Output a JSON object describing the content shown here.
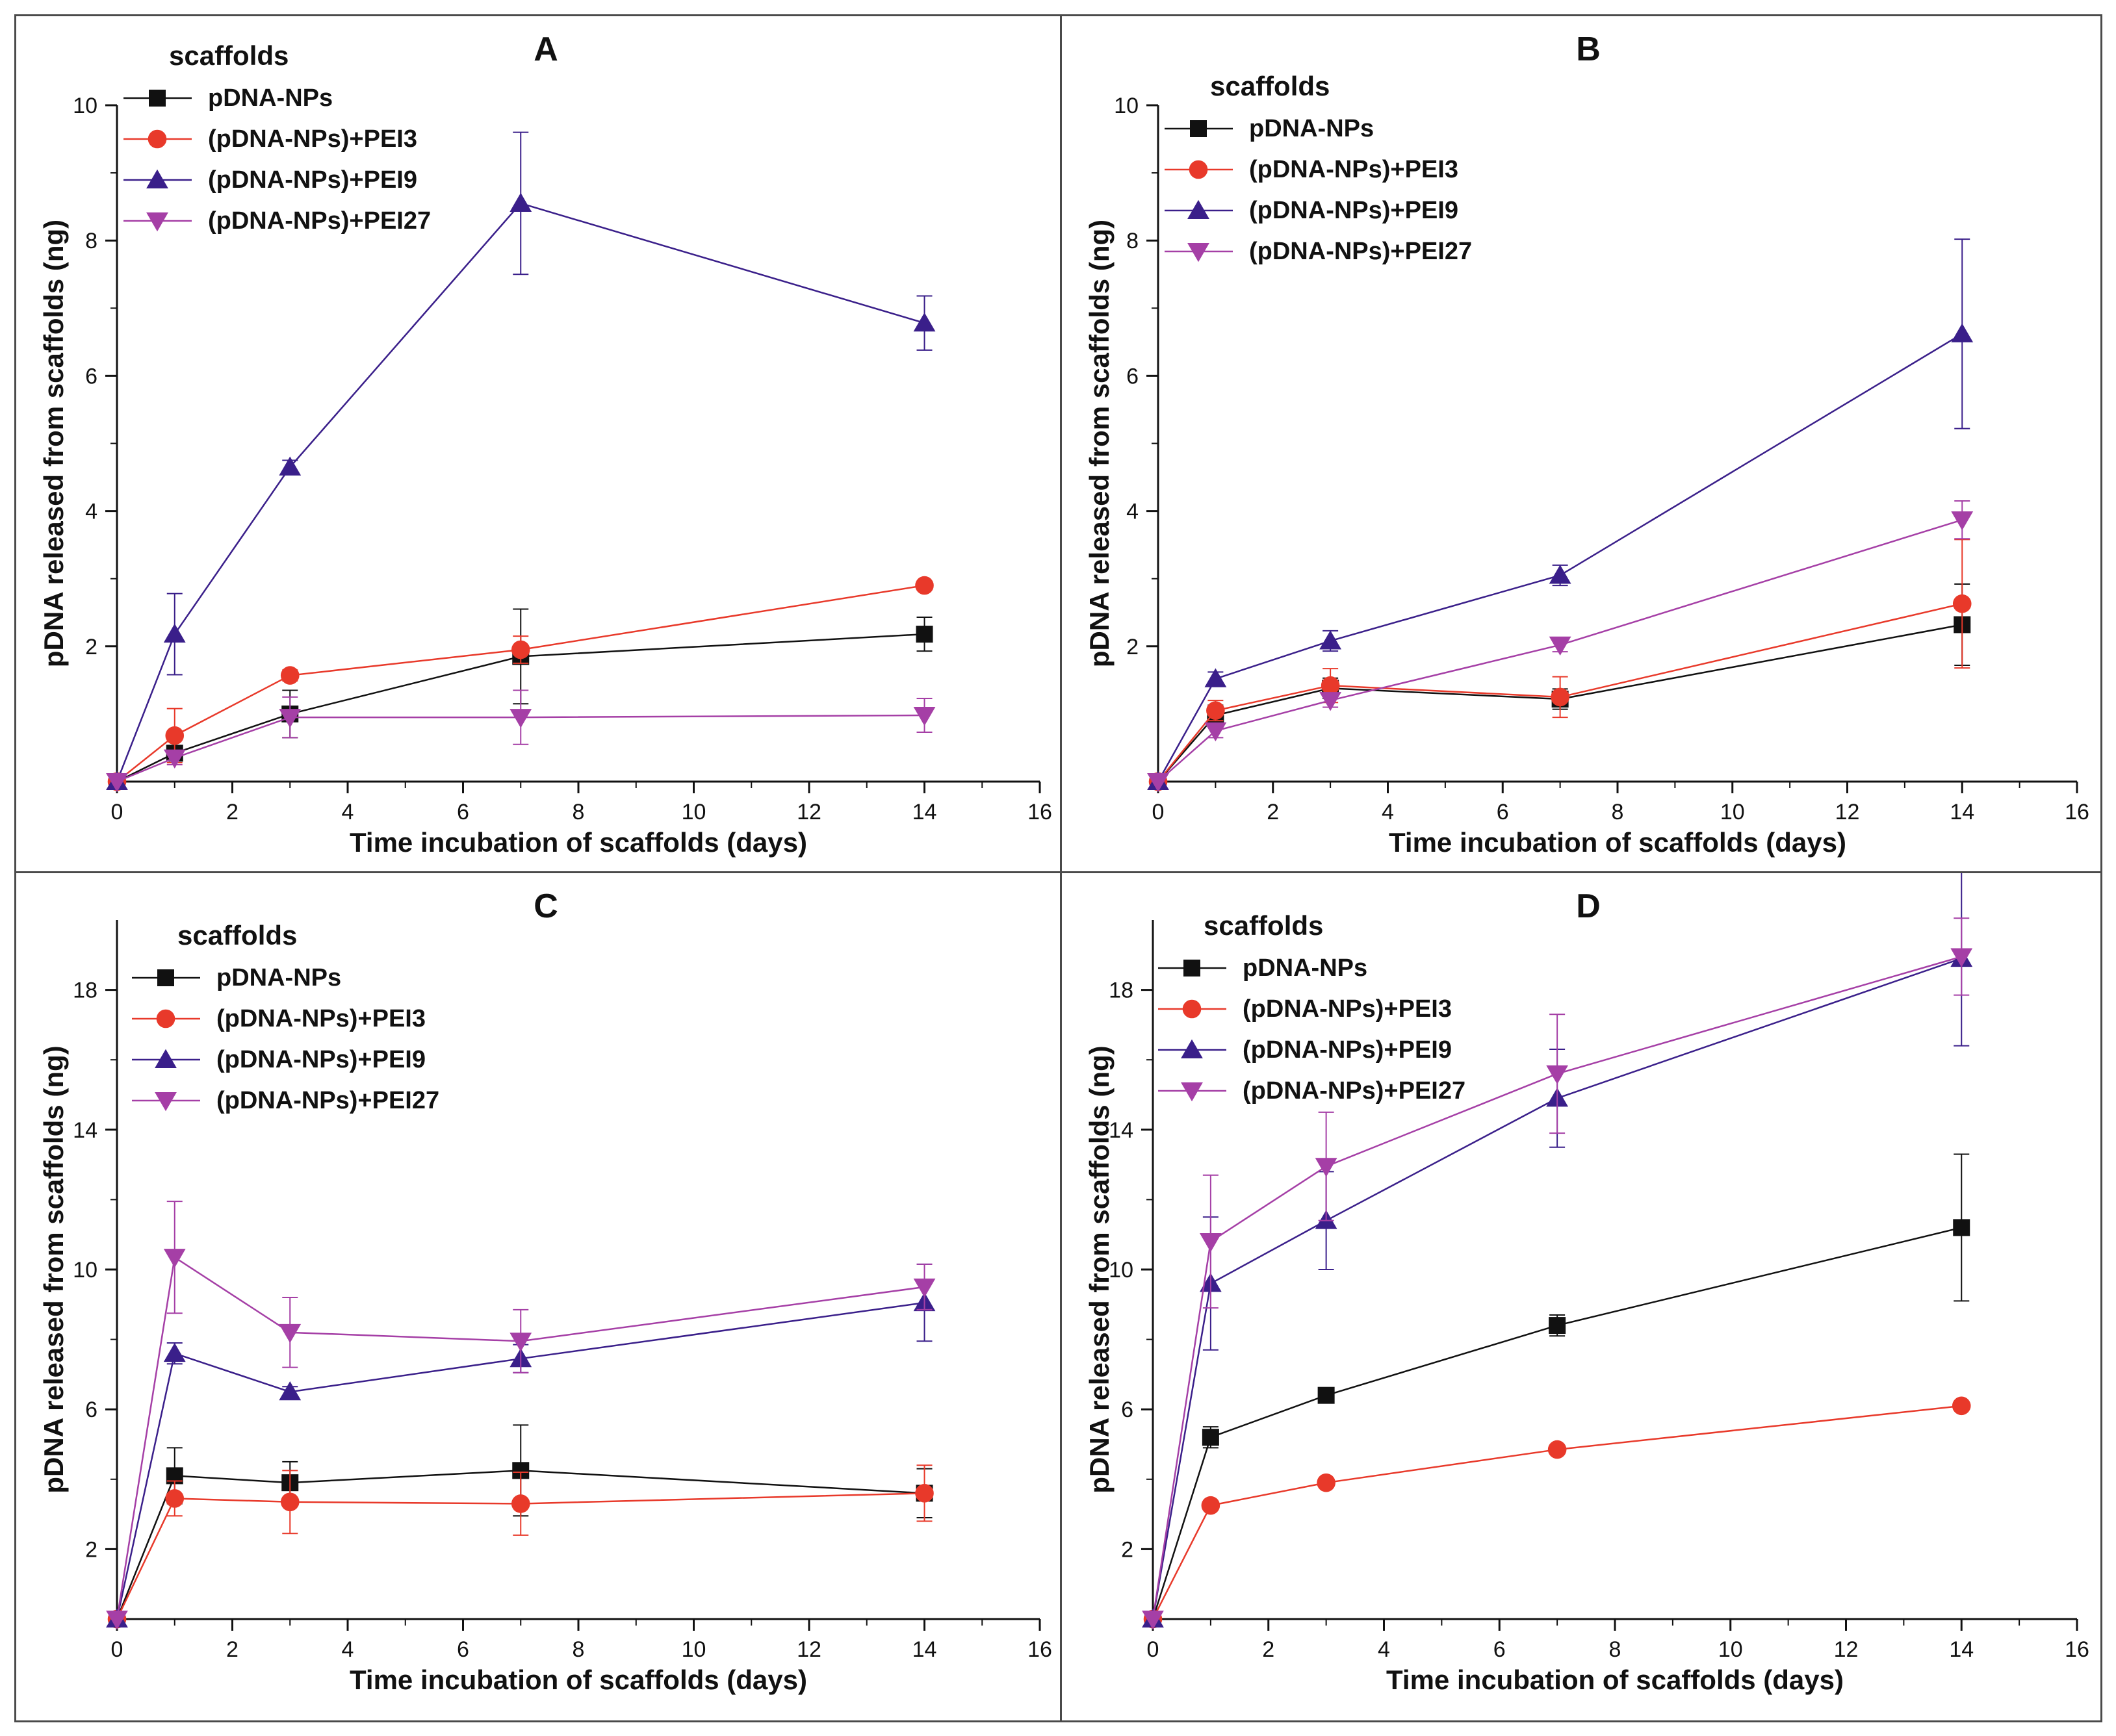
{
  "chart_data": [
    {
      "type": "line",
      "panel_label": "A",
      "xlabel": "Time incubation of scaffolds (days)",
      "ylabel": "pDNA released from scaffolds (ng)",
      "xlim": [
        0,
        16
      ],
      "ylim": [
        0,
        10
      ],
      "xticks": [
        0,
        2,
        4,
        6,
        8,
        10,
        12,
        14,
        16
      ],
      "yticks": [
        2,
        4,
        6,
        8,
        10
      ],
      "legend_title": "scaffolds",
      "legend_position": "top-left",
      "x": [
        0,
        1,
        3,
        7,
        14
      ],
      "series": [
        {
          "name": "pDNA-NPs",
          "color": "#111111",
          "marker": "square",
          "values": [
            0,
            0.42,
            1.0,
            1.85,
            2.18
          ],
          "errors": [
            0,
            0.1,
            0.35,
            0.7,
            0.25
          ]
        },
        {
          "name": "(pDNA-NPs)+PEI3",
          "color": "#e8392a",
          "marker": "circle",
          "values": [
            0,
            0.68,
            1.57,
            1.95,
            2.9
          ],
          "errors": [
            0,
            0.4,
            0.08,
            0.2,
            0.06
          ]
        },
        {
          "name": "(pDNA-NPs)+PEI9",
          "color": "#3a1f8a",
          "marker": "triangle-up",
          "values": [
            0,
            2.18,
            4.65,
            8.55,
            6.78
          ],
          "errors": [
            0,
            0.6,
            0.1,
            1.05,
            0.4
          ]
        },
        {
          "name": "(pDNA-NPs)+PEI27",
          "color": "#a53fa6",
          "marker": "triangle-down",
          "values": [
            0,
            0.35,
            0.95,
            0.95,
            0.98
          ],
          "errors": [
            0,
            0.1,
            0.3,
            0.4,
            0.25
          ]
        }
      ]
    },
    {
      "type": "line",
      "panel_label": "B",
      "xlabel": "Time incubation of scaffolds (days)",
      "ylabel": "pDNA released from scaffolds (ng)",
      "xlim": [
        0,
        16
      ],
      "ylim": [
        0,
        10
      ],
      "xticks": [
        0,
        2,
        4,
        6,
        8,
        10,
        12,
        14,
        16
      ],
      "yticks": [
        2,
        4,
        6,
        8,
        10
      ],
      "legend_title": "scaffolds",
      "legend_position": "top-left",
      "x": [
        0,
        1,
        3,
        7,
        14
      ],
      "series": [
        {
          "name": "pDNA-NPs",
          "color": "#111111",
          "marker": "square",
          "values": [
            0,
            0.98,
            1.38,
            1.22,
            2.32
          ],
          "errors": [
            0,
            0.15,
            0.15,
            0.15,
            0.6
          ]
        },
        {
          "name": "(pDNA-NPs)+PEI3",
          "color": "#e8392a",
          "marker": "circle",
          "values": [
            0,
            1.05,
            1.42,
            1.25,
            2.63
          ],
          "errors": [
            0,
            0.15,
            0.25,
            0.3,
            0.95
          ]
        },
        {
          "name": "(pDNA-NPs)+PEI9",
          "color": "#3a1f8a",
          "marker": "triangle-up",
          "values": [
            0,
            1.52,
            2.08,
            3.05,
            6.62
          ],
          "errors": [
            0,
            0.1,
            0.15,
            0.15,
            1.4
          ]
        },
        {
          "name": "(pDNA-NPs)+PEI27",
          "color": "#a53fa6",
          "marker": "triangle-down",
          "values": [
            0,
            0.75,
            1.2,
            2.02,
            3.87
          ],
          "errors": [
            0,
            0.1,
            0.1,
            0.1,
            0.28
          ]
        }
      ]
    },
    {
      "type": "line",
      "panel_label": "C",
      "xlabel": "Time incubation of scaffolds (days)",
      "ylabel": "pDNA released from scaffolds (ng)",
      "xlim": [
        0,
        16
      ],
      "ylim": [
        0,
        20
      ],
      "xticks": [
        0,
        2,
        4,
        6,
        8,
        10,
        12,
        14,
        16
      ],
      "yticks": [
        2,
        6,
        10,
        14,
        18
      ],
      "legend_title": "scaffolds",
      "legend_position": "top-left",
      "x": [
        0,
        1,
        3,
        7,
        14
      ],
      "series": [
        {
          "name": "pDNA-NPs",
          "color": "#111111",
          "marker": "square",
          "values": [
            0,
            4.1,
            3.9,
            4.25,
            3.6
          ],
          "errors": [
            0,
            0.8,
            0.6,
            1.3,
            0.7
          ]
        },
        {
          "name": "(pDNA-NPs)+PEI3",
          "color": "#e8392a",
          "marker": "circle",
          "values": [
            0,
            3.45,
            3.35,
            3.3,
            3.6
          ],
          "errors": [
            0,
            0.5,
            0.9,
            0.9,
            0.8
          ]
        },
        {
          "name": "(pDNA-NPs)+PEI9",
          "color": "#3a1f8a",
          "marker": "triangle-up",
          "values": [
            0,
            7.6,
            6.5,
            7.45,
            9.05
          ],
          "errors": [
            0,
            0.3,
            0.15,
            0.4,
            1.1
          ]
        },
        {
          "name": "(pDNA-NPs)+PEI27",
          "color": "#a53fa6",
          "marker": "triangle-down",
          "values": [
            0,
            10.35,
            8.2,
            7.95,
            9.5
          ],
          "errors": [
            0,
            1.6,
            1.0,
            0.9,
            0.65
          ]
        }
      ]
    },
    {
      "type": "line",
      "panel_label": "D",
      "xlabel": "Time incubation of scaffolds (days)",
      "ylabel": "pDNA released from scaffolds (ng)",
      "xlim": [
        0,
        16
      ],
      "ylim": [
        0,
        20
      ],
      "xticks": [
        0,
        2,
        4,
        6,
        8,
        10,
        12,
        14,
        16
      ],
      "yticks": [
        2,
        6,
        10,
        14,
        18
      ],
      "legend_title": "scaffolds",
      "legend_position": "top-left",
      "x": [
        0,
        1,
        3,
        7,
        14
      ],
      "series": [
        {
          "name": "pDNA-NPs",
          "color": "#111111",
          "marker": "square",
          "values": [
            0,
            5.2,
            6.4,
            8.4,
            11.2
          ],
          "errors": [
            0,
            0.3,
            0.15,
            0.3,
            2.1
          ]
        },
        {
          "name": "(pDNA-NPs)+PEI3",
          "color": "#e8392a",
          "marker": "circle",
          "values": [
            0,
            3.25,
            3.9,
            4.85,
            6.1
          ],
          "errors": [
            0,
            0.1,
            0.1,
            0.1,
            0.1
          ]
        },
        {
          "name": "(pDNA-NPs)+PEI9",
          "color": "#3a1f8a",
          "marker": "triangle-up",
          "values": [
            0,
            9.6,
            11.4,
            14.9,
            18.9
          ],
          "errors": [
            0,
            1.9,
            1.4,
            1.4,
            2.5
          ]
        },
        {
          "name": "(pDNA-NPs)+PEI27",
          "color": "#a53fa6",
          "marker": "triangle-down",
          "values": [
            0,
            10.8,
            12.95,
            15.6,
            18.95
          ],
          "errors": [
            0,
            1.9,
            1.55,
            1.7,
            1.1
          ]
        }
      ]
    }
  ]
}
